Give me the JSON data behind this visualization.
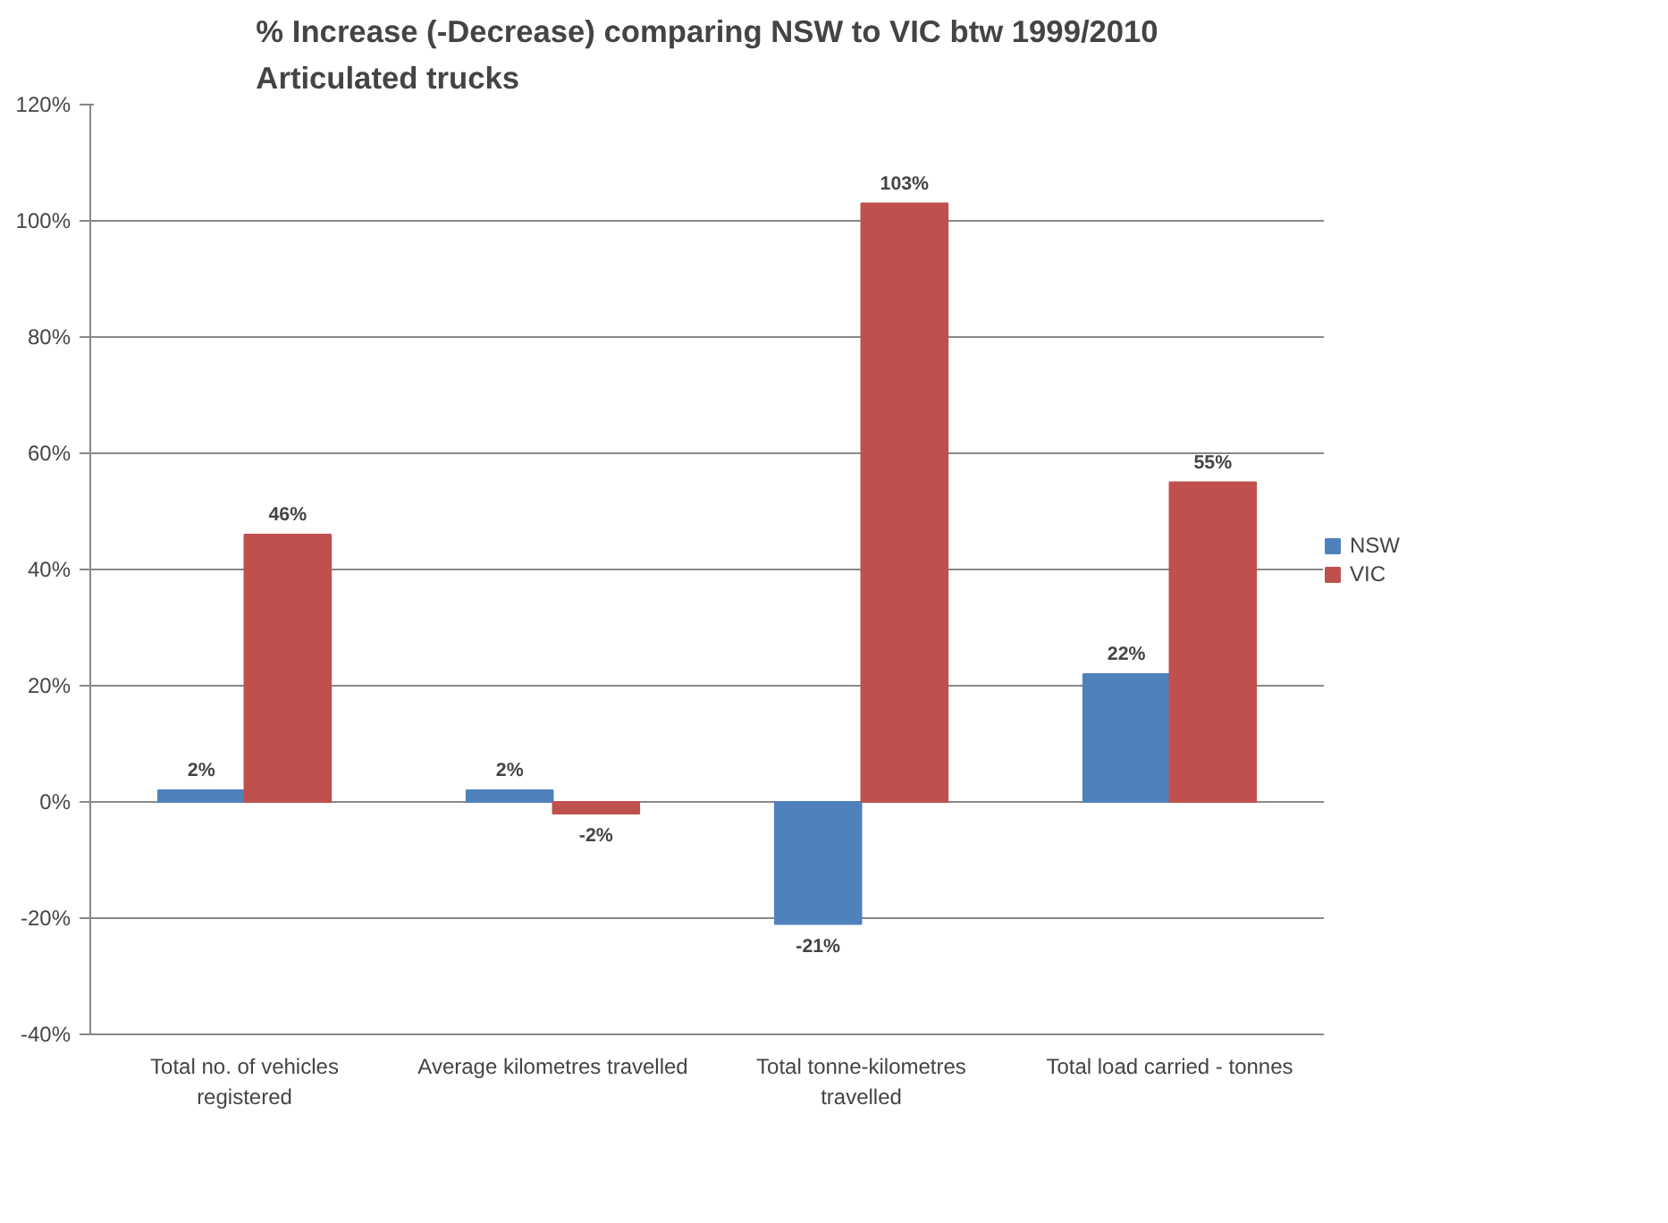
{
  "chart_data": {
    "type": "bar",
    "title": "% Increase (-Decrease) comparing NSW to VIC btw 1999/2010\nArticulated trucks",
    "categories": [
      "Total no. of vehicles\nregistered",
      "Average kilometres travelled",
      "Total tonne-kilometres\ntravelled",
      "Total load carried - tonnes"
    ],
    "series": [
      {
        "name": "NSW",
        "color": "#4f81bd",
        "values": [
          2,
          2,
          -21,
          22
        ],
        "value_labels": [
          "2%",
          "2%",
          "-21%",
          "22%"
        ]
      },
      {
        "name": "VIC",
        "color": "#c0504d",
        "values": [
          46,
          -2,
          103,
          55
        ],
        "value_labels": [
          "46%",
          "-2%",
          "103%",
          "55%"
        ]
      }
    ],
    "ylim": [
      -40,
      120
    ],
    "yticks": [
      {
        "value": -40,
        "label": "-40%"
      },
      {
        "value": -20,
        "label": "-20%"
      },
      {
        "value": 0,
        "label": "0%"
      },
      {
        "value": 20,
        "label": "20%"
      },
      {
        "value": 40,
        "label": "40%"
      },
      {
        "value": 60,
        "label": "60%"
      },
      {
        "value": 80,
        "label": "80%"
      },
      {
        "value": 100,
        "label": "100%"
      },
      {
        "value": 120,
        "label": "120%"
      }
    ],
    "grid": "y",
    "legend": "right"
  }
}
